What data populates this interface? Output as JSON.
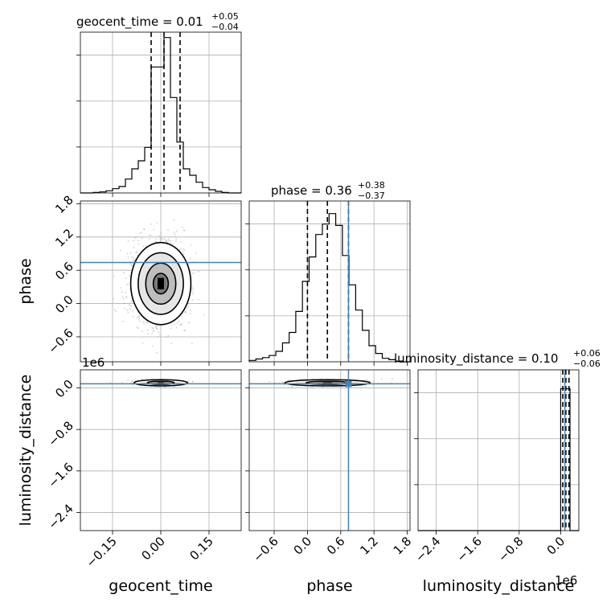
{
  "chart_data": {
    "type": "corner",
    "grid": true,
    "params": [
      {
        "name": "geocent_time",
        "xlabel": "geocent_time",
        "ylabel": "",
        "title": {
          "main": "geocent_time = 0.01",
          "sup": "+0.05",
          "sub": "−0.04"
        },
        "quantiles": [
          -0.03,
          0.01,
          0.06
        ],
        "range": [
          -0.25,
          0.25
        ],
        "ticks": [
          -0.15,
          0.0,
          0.15
        ],
        "tick_labels": [
          "−0.15",
          "0.00",
          "0.15"
        ],
        "histogram": {
          "edges": [
            -0.25,
            -0.23,
            -0.21,
            -0.19,
            -0.17,
            -0.15,
            -0.13,
            -0.11,
            -0.09,
            -0.07,
            -0.05,
            -0.03,
            -0.01,
            0.01,
            0.03,
            0.05,
            0.07,
            0.09,
            0.11,
            0.13,
            0.15,
            0.17,
            0.19,
            0.21,
            0.23,
            0.25
          ],
          "counts": [
            0,
            0,
            1,
            2,
            4,
            8,
            12,
            26,
            45,
            60,
            85,
            235,
            235,
            290,
            178,
            95,
            45,
            33,
            20,
            10,
            6,
            3,
            1,
            0,
            0
          ],
          "ylim": [
            0,
            300
          ]
        }
      },
      {
        "name": "phase",
        "xlabel": "phase",
        "ylabel": "phase",
        "title": {
          "main": "phase = 0.36",
          "sup": "+0.38",
          "sub": "−0.37"
        },
        "quantiles": [
          0.0,
          0.36,
          0.74
        ],
        "injection": 0.74,
        "range": [
          -1.05,
          1.85
        ],
        "ticks": [
          -0.6,
          0.0,
          0.6,
          1.2,
          1.8
        ],
        "tick_labels": [
          "−0.6",
          "0.0",
          "0.6",
          "1.2",
          "1.8"
        ],
        "histogram": {
          "edges": [
            -1.05,
            -0.93,
            -0.81,
            -0.69,
            -0.57,
            -0.45,
            -0.33,
            -0.21,
            -0.09,
            0.03,
            0.15,
            0.27,
            0.39,
            0.51,
            0.63,
            0.75,
            0.87,
            0.99,
            1.11,
            1.23,
            1.35,
            1.47,
            1.59,
            1.71,
            1.85
          ],
          "counts": [
            2,
            4,
            6,
            9,
            15,
            27,
            42,
            72,
            115,
            150,
            182,
            197,
            212,
            195,
            152,
            110,
            74,
            45,
            23,
            12,
            5,
            3,
            1,
            0
          ],
          "ylim": [
            0,
            230
          ]
        }
      },
      {
        "name": "luminosity_distance",
        "xlabel": "luminosity_distance",
        "ylabel": "luminosity_distance",
        "title": {
          "main": "luminosity_distance = 0.10",
          "sup": "+0.06",
          "sub": "−0.06"
        },
        "quantiles": [
          0.04,
          0.1,
          0.16
        ],
        "injection": 0.08,
        "range": [
          -2.75,
          0.35
        ],
        "ticks": [
          -2.4,
          -1.6,
          -0.8,
          0.0
        ],
        "tick_labels": [
          "−2.4",
          "−1.6",
          "−0.8",
          "0.0"
        ],
        "offset_label": "1e6",
        "histogram": {
          "edges": [
            -2.75,
            0.0,
            0.06,
            0.12,
            0.18,
            0.35
          ],
          "counts": [
            0,
            300,
            300,
            300,
            0
          ],
          "ylim": [
            0,
            340
          ]
        }
      }
    ],
    "joint": [
      {
        "x": "geocent_time",
        "y": "phase",
        "center": [
          0.0,
          0.36
        ],
        "sigma": [
          0.045,
          0.37
        ],
        "injection_y": 0.74,
        "levels_sigma": [
          0.5,
          1.0,
          1.5,
          2.0
        ]
      },
      {
        "x": "geocent_time",
        "y": "luminosity_distance",
        "center": [
          0.0,
          0.1
        ],
        "sigma": [
          0.04,
          0.03
        ],
        "injection_y": 0.08,
        "levels_sigma": [
          1.0,
          2.0
        ]
      },
      {
        "x": "phase",
        "y": "luminosity_distance",
        "center": [
          0.36,
          0.1
        ],
        "sigma": [
          0.37,
          0.03
        ],
        "injection_x": 0.74,
        "injection_y": 0.08,
        "levels_sigma": [
          1.0,
          2.0
        ]
      }
    ],
    "colors": {
      "injection": "#4682b4",
      "hist": "#000000",
      "grid": "#b0b0b0",
      "points": "#9a9a9a"
    }
  }
}
